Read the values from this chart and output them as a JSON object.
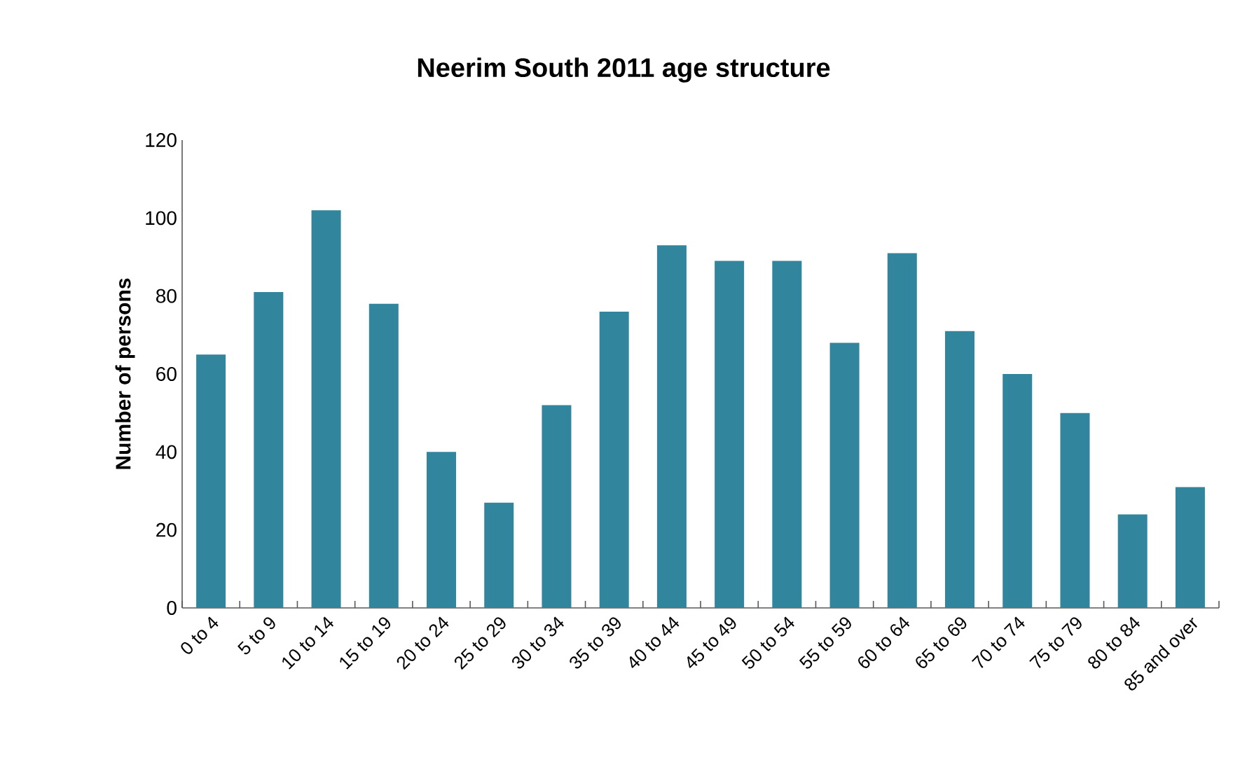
{
  "chart_data": {
    "type": "bar",
    "title": "Neerim South 2011 age structure",
    "ylabel": "Number of persons",
    "categories": [
      "0 to 4",
      "5 to 9",
      "10 to 14",
      "15 to 19",
      "20 to 24",
      "25 to 29",
      "30 to 34",
      "35 to 39",
      "40 to 44",
      "45 to 49",
      "50 to 54",
      "55 to 59",
      "60 to 64",
      "65 to 69",
      "70 to 74",
      "75 to 79",
      "80 to 84",
      "85 and over"
    ],
    "values": [
      65,
      81,
      102,
      78,
      40,
      27,
      52,
      76,
      93,
      89,
      89,
      68,
      91,
      71,
      60,
      50,
      24,
      31
    ],
    "color": "#31859c",
    "ylim": [
      0,
      120
    ],
    "yticks": [
      0,
      20,
      40,
      60,
      80,
      100,
      120
    ],
    "grid": false
  }
}
